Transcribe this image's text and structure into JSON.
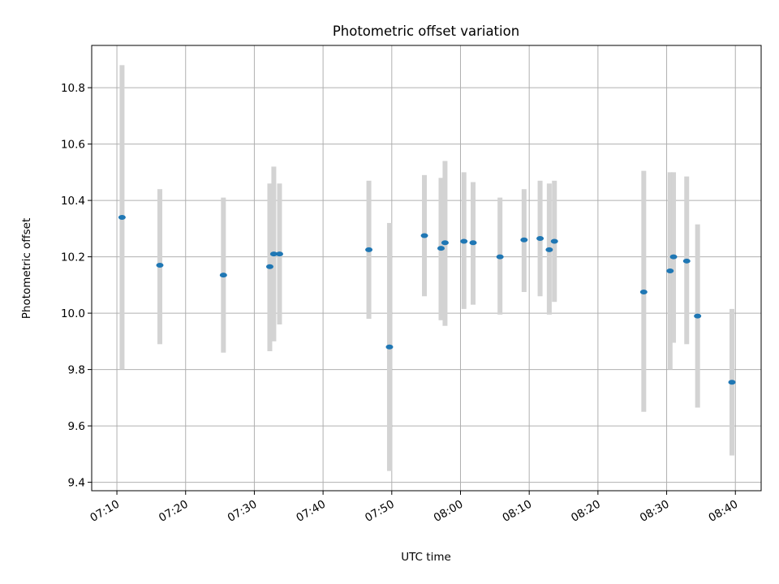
{
  "chart_data": {
    "type": "scatter",
    "title": "Photometric offset variation",
    "xlabel": "UTC time",
    "ylabel": "Photometric offset",
    "x_tick_labels": [
      "07:10",
      "07:20",
      "07:30",
      "07:40",
      "07:50",
      "08:00",
      "08:10",
      "08:20",
      "08:30",
      "08:40"
    ],
    "y_tick_labels": [
      "9.4",
      "9.6",
      "9.8",
      "10.0",
      "10.2",
      "10.4",
      "10.6",
      "10.8"
    ],
    "y_ticks": [
      9.4,
      9.6,
      9.8,
      10.0,
      10.2,
      10.4,
      10.6,
      10.8
    ],
    "xlim": [
      "07:06:20",
      "08:43:45"
    ],
    "ylim": [
      9.37,
      10.95
    ],
    "grid": true,
    "colors": {
      "point": "#1f77b4",
      "errorbar": "#d3d3d3",
      "grid": "#b0b0b0"
    },
    "series": [
      {
        "points": [
          {
            "time": "07:10:45",
            "y": 10.34,
            "ymin": 9.8,
            "ymax": 10.88
          },
          {
            "time": "07:16:15",
            "y": 10.17,
            "ymin": 9.89,
            "ymax": 10.44
          },
          {
            "time": "07:25:30",
            "y": 10.135,
            "ymin": 9.86,
            "ymax": 10.41
          },
          {
            "time": "07:32:15",
            "y": 10.165,
            "ymin": 9.865,
            "ymax": 10.46
          },
          {
            "time": "07:32:50",
            "y": 10.21,
            "ymin": 9.9,
            "ymax": 10.52
          },
          {
            "time": "07:33:40",
            "y": 10.21,
            "ymin": 9.96,
            "ymax": 10.46
          },
          {
            "time": "07:46:40",
            "y": 10.225,
            "ymin": 9.98,
            "ymax": 10.47
          },
          {
            "time": "07:49:40",
            "y": 9.88,
            "ymin": 9.44,
            "ymax": 10.32
          },
          {
            "time": "07:54:45",
            "y": 10.275,
            "ymin": 10.06,
            "ymax": 10.49
          },
          {
            "time": "07:57:10",
            "y": 10.23,
            "ymin": 9.975,
            "ymax": 10.48
          },
          {
            "time": "07:57:45",
            "y": 10.25,
            "ymin": 9.955,
            "ymax": 10.54
          },
          {
            "time": "08:00:30",
            "y": 10.255,
            "ymin": 10.015,
            "ymax": 10.5
          },
          {
            "time": "08:01:50",
            "y": 10.25,
            "ymin": 10.03,
            "ymax": 10.465
          },
          {
            "time": "08:05:45",
            "y": 10.2,
            "ymin": 9.995,
            "ymax": 10.41
          },
          {
            "time": "08:09:15",
            "y": 10.26,
            "ymin": 10.075,
            "ymax": 10.44
          },
          {
            "time": "08:11:35",
            "y": 10.265,
            "ymin": 10.06,
            "ymax": 10.47
          },
          {
            "time": "08:12:55",
            "y": 10.225,
            "ymin": 9.995,
            "ymax": 10.46
          },
          {
            "time": "08:13:40",
            "y": 10.255,
            "ymin": 10.04,
            "ymax": 10.47
          },
          {
            "time": "08:26:40",
            "y": 10.075,
            "ymin": 9.65,
            "ymax": 10.505
          },
          {
            "time": "08:30:30",
            "y": 10.15,
            "ymin": 9.8,
            "ymax": 10.5
          },
          {
            "time": "08:31:00",
            "y": 10.2,
            "ymin": 9.895,
            "ymax": 10.5
          },
          {
            "time": "08:32:55",
            "y": 10.185,
            "ymin": 9.89,
            "ymax": 10.485
          },
          {
            "time": "08:34:30",
            "y": 9.99,
            "ymin": 9.665,
            "ymax": 10.315
          },
          {
            "time": "08:39:30",
            "y": 9.755,
            "ymin": 9.495,
            "ymax": 10.015
          }
        ]
      }
    ]
  }
}
